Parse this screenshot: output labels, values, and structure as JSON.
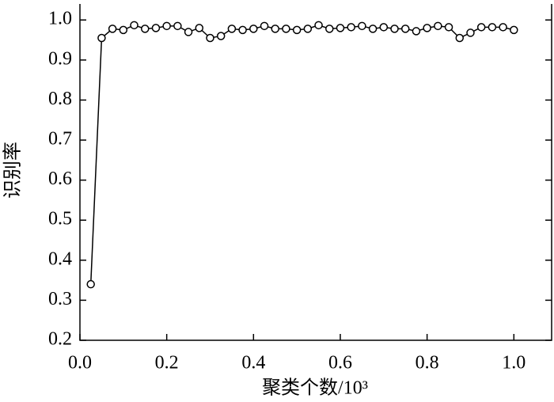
{
  "chart_data": {
    "type": "line",
    "x_label": "聚类个数/10³",
    "y_label": "识别率",
    "x": [
      0.025,
      0.05,
      0.075,
      0.1,
      0.125,
      0.15,
      0.175,
      0.2,
      0.225,
      0.25,
      0.275,
      0.3,
      0.325,
      0.35,
      0.375,
      0.4,
      0.425,
      0.45,
      0.475,
      0.5,
      0.525,
      0.55,
      0.575,
      0.6,
      0.625,
      0.65,
      0.675,
      0.7,
      0.725,
      0.75,
      0.775,
      0.8,
      0.825,
      0.85,
      0.875,
      0.9,
      0.925,
      0.95,
      0.975,
      1.0
    ],
    "series": [
      {
        "color": "#000000",
        "values": [
          0.34,
          0.955,
          0.978,
          0.975,
          0.987,
          0.978,
          0.98,
          0.985,
          0.985,
          0.97,
          0.98,
          0.955,
          0.96,
          0.978,
          0.975,
          0.978,
          0.985,
          0.978,
          0.978,
          0.975,
          0.978,
          0.987,
          0.978,
          0.98,
          0.982,
          0.985,
          0.978,
          0.982,
          0.978,
          0.978,
          0.972,
          0.98,
          0.985,
          0.982,
          0.955,
          0.968,
          0.982,
          0.982,
          0.982,
          0.975
        ]
      }
    ],
    "xlim": [
      0,
      1.087
    ],
    "ylim": [
      0.2,
      1.04
    ],
    "xticks": [
      {
        "value": 0,
        "label": "0.0"
      },
      0.2,
      0.4,
      0.6,
      0.8,
      {
        "value": 1,
        "label": "1.0"
      }
    ],
    "yticks": [
      0.2,
      0.3,
      0.4,
      0.5,
      0.6,
      0.7,
      0.8,
      0.9,
      {
        "value": 1,
        "label": "1.0"
      }
    ]
  }
}
